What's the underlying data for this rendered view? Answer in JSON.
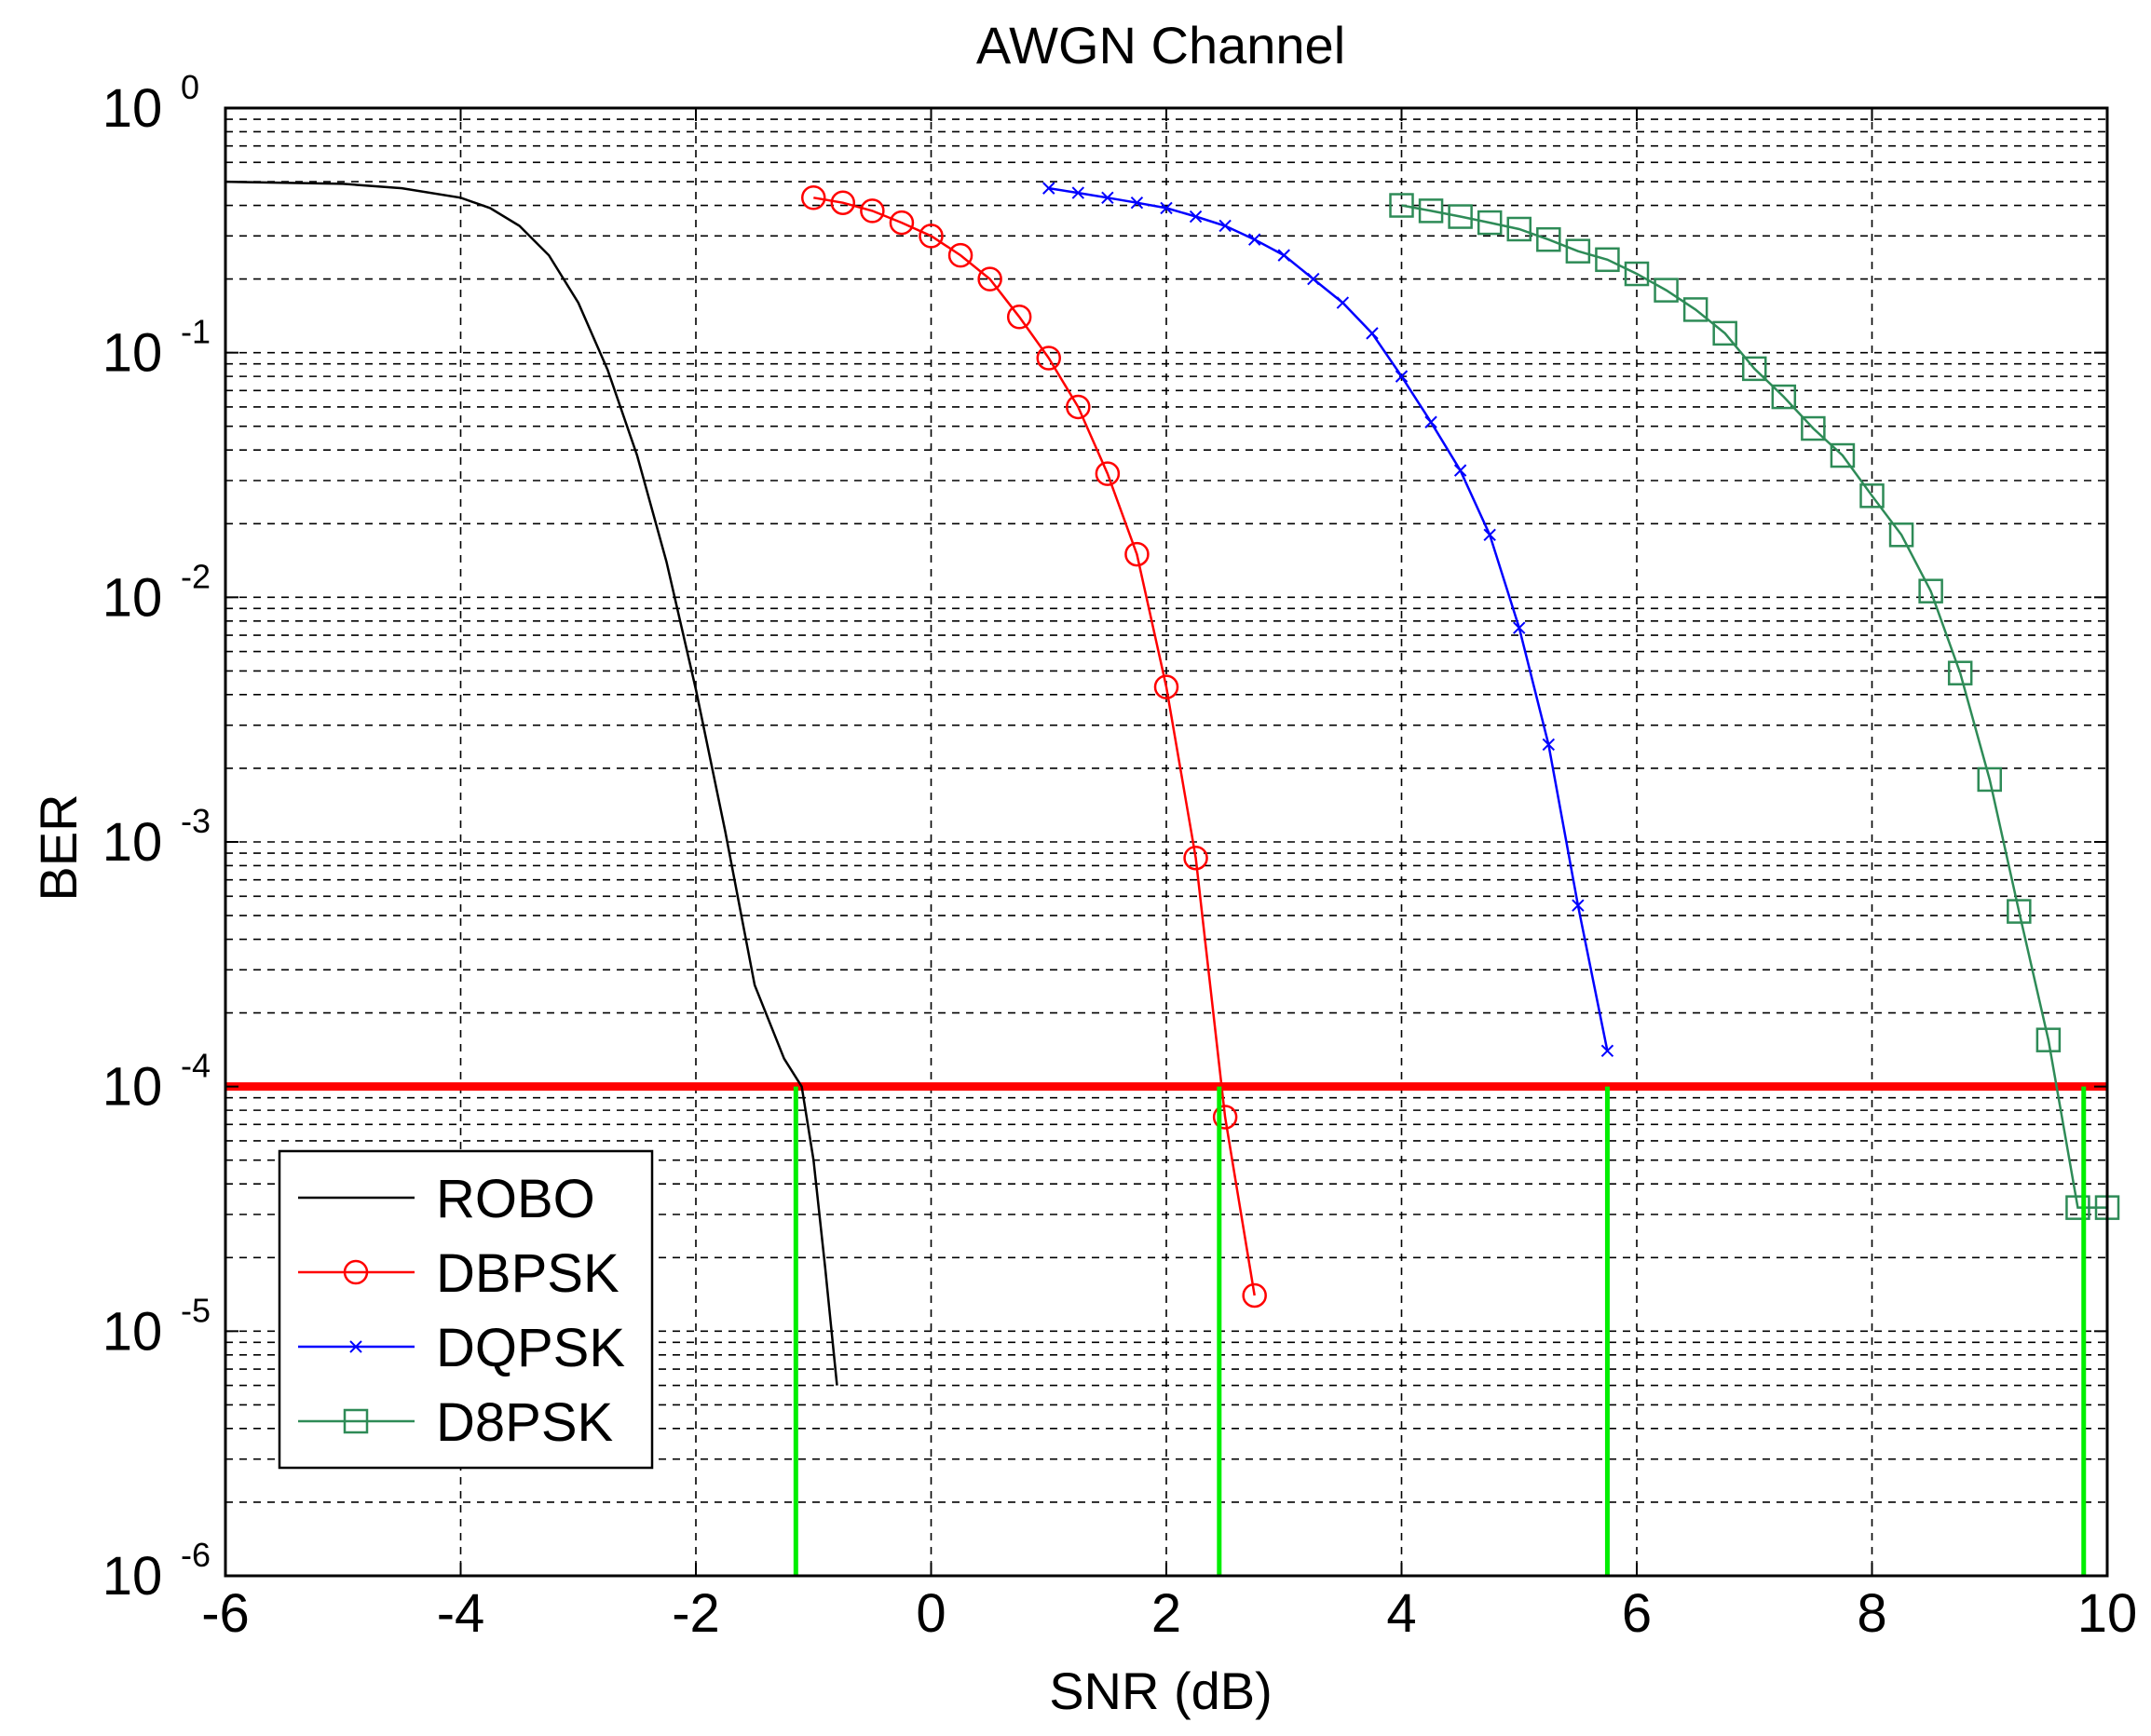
{
  "chart_data": {
    "type": "line",
    "title": "AWGN Channel",
    "xlabel": "SNR (dB)",
    "ylabel": "BER",
    "xlim": [
      -6,
      10
    ],
    "ylim": [
      1e-06,
      1
    ],
    "yscale": "log",
    "grid": true,
    "legend_position": "bottom-left",
    "x_ticks": [
      {
        "value": -6,
        "label": "-6"
      },
      {
        "value": -4,
        "label": "-4"
      },
      {
        "value": -2,
        "label": "-2"
      },
      {
        "value": 0,
        "label": "0"
      },
      {
        "value": 2,
        "label": "2"
      },
      {
        "value": 4,
        "label": "4"
      },
      {
        "value": 6,
        "label": "6"
      },
      {
        "value": 8,
        "label": "8"
      },
      {
        "value": 10,
        "label": "10"
      }
    ],
    "y_ticks": [
      {
        "value": 1,
        "base": "10",
        "exp": "0"
      },
      {
        "value": 0.1,
        "base": "10",
        "exp": "-1"
      },
      {
        "value": 0.01,
        "base": "10",
        "exp": "-2"
      },
      {
        "value": 0.001,
        "base": "10",
        "exp": "-3"
      },
      {
        "value": 0.0001,
        "base": "10",
        "exp": "-4"
      },
      {
        "value": 1e-05,
        "base": "10",
        "exp": "-5"
      },
      {
        "value": 1e-06,
        "base": "10",
        "exp": "-6"
      }
    ],
    "series": [
      {
        "name": "ROBO",
        "color": "#000000",
        "marker": "none",
        "x": [
          -6,
          -5,
          -4.5,
          -4,
          -3.75,
          -3.5,
          -3.25,
          -3,
          -2.75,
          -2.5,
          -2.25,
          -2,
          -1.75,
          -1.5,
          -1.25,
          -1.1,
          -1,
          -0.9,
          -0.8
        ],
        "y": [
          0.5,
          0.49,
          0.47,
          0.43,
          0.39,
          0.33,
          0.25,
          0.16,
          0.085,
          0.038,
          0.014,
          0.0042,
          0.0011,
          0.00026,
          0.00013,
          0.0001,
          5e-05,
          1.8e-05,
          6e-06
        ]
      },
      {
        "name": "DBPSK",
        "color": "#ff0000",
        "marker": "circle",
        "x": [
          -1,
          -0.75,
          -0.5,
          -0.25,
          0,
          0.25,
          0.5,
          0.75,
          1,
          1.25,
          1.5,
          1.75,
          2,
          2.25,
          2.5,
          2.75
        ],
        "y": [
          0.43,
          0.41,
          0.38,
          0.34,
          0.3,
          0.25,
          0.2,
          0.14,
          0.095,
          0.06,
          0.032,
          0.015,
          0.0043,
          0.00086,
          7.5e-05,
          1.4e-05
        ]
      },
      {
        "name": "DQPSK",
        "color": "#0000ff",
        "marker": "x",
        "x": [
          1,
          1.25,
          1.5,
          1.75,
          2,
          2.25,
          2.5,
          2.75,
          3,
          3.25,
          3.5,
          3.75,
          4,
          4.25,
          4.5,
          4.75,
          5,
          5.25,
          5.5,
          5.75
        ],
        "y": [
          0.47,
          0.45,
          0.43,
          0.41,
          0.39,
          0.36,
          0.33,
          0.29,
          0.25,
          0.2,
          0.16,
          0.12,
          0.08,
          0.052,
          0.033,
          0.018,
          0.0075,
          0.0025,
          0.00055,
          0.00014
        ]
      },
      {
        "name": "D8PSK",
        "color": "#2e8b57",
        "marker": "square",
        "x": [
          4,
          4.25,
          4.5,
          4.75,
          5,
          5.25,
          5.5,
          5.75,
          6,
          6.25,
          6.5,
          6.75,
          7,
          7.25,
          7.5,
          7.75,
          8,
          8.25,
          8.5,
          8.75,
          9,
          9.25,
          9.5,
          9.75,
          10
        ],
        "y": [
          0.4,
          0.38,
          0.36,
          0.34,
          0.32,
          0.29,
          0.26,
          0.24,
          0.21,
          0.18,
          0.15,
          0.12,
          0.086,
          0.066,
          0.049,
          0.038,
          0.026,
          0.018,
          0.0106,
          0.0049,
          0.0018,
          0.00052,
          0.000155,
          3.2e-05,
          3.2e-05
        ]
      }
    ],
    "threshold_line": {
      "y": 0.0001,
      "color": "#ff0000"
    },
    "crossing_lines": {
      "color": "#00ee00",
      "x": [
        -1.15,
        2.45,
        5.75,
        9.8
      ]
    }
  }
}
